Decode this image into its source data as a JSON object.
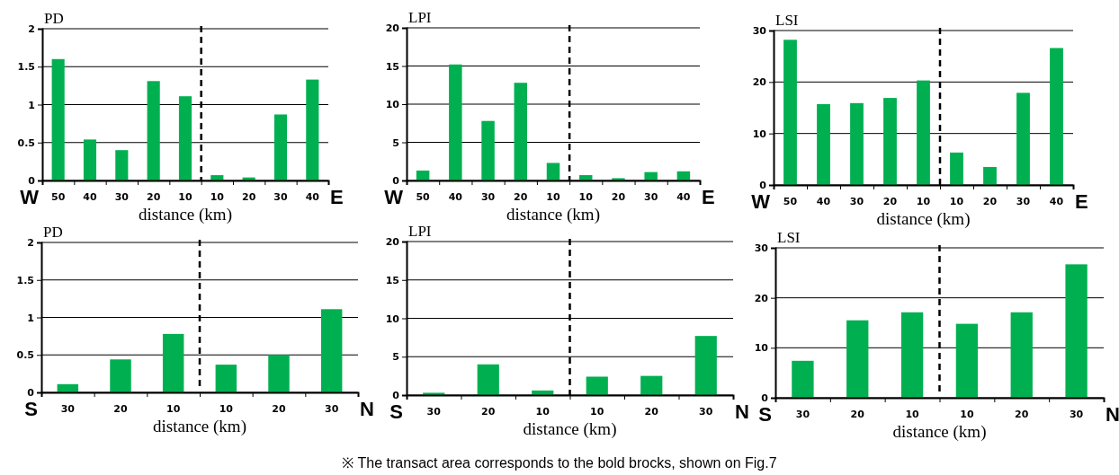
{
  "chart_data": [
    {
      "type": "bar",
      "title": "PD",
      "xlabel": "distance (km)",
      "categories": [
        "50",
        "40",
        "30",
        "20",
        "10",
        "10",
        "20",
        "30",
        "40"
      ],
      "values": [
        1.6,
        0.54,
        0.4,
        1.31,
        1.11,
        0.07,
        0.04,
        0.87,
        1.33
      ],
      "color": "#00b050",
      "ylim": [
        0,
        2
      ],
      "yticks": [
        0,
        0.5,
        1,
        1.5,
        2
      ],
      "grid": "y",
      "annotations": [
        "W",
        "E"
      ]
    },
    {
      "type": "bar",
      "title": "LPI",
      "xlabel": "distance (km)",
      "categories": [
        "50",
        "40",
        "30",
        "20",
        "10",
        "10",
        "20",
        "30",
        "40"
      ],
      "values": [
        1.3,
        15.2,
        7.8,
        12.8,
        2.3,
        0.7,
        0.3,
        1.1,
        1.2
      ],
      "color": "#00b050",
      "ylim": [
        0,
        20
      ],
      "yticks": [
        0,
        5,
        10,
        15,
        20
      ],
      "grid": "y",
      "annotations": [
        "W",
        "E"
      ]
    },
    {
      "type": "bar",
      "title": "LSI",
      "xlabel": "distance (km)",
      "categories": [
        "50",
        "40",
        "30",
        "20",
        "10",
        "10",
        "20",
        "30",
        "40"
      ],
      "values": [
        28.2,
        15.7,
        15.9,
        16.9,
        20.3,
        6.3,
        3.5,
        17.9,
        26.6
      ],
      "color": "#00b050",
      "ylim": [
        0,
        30
      ],
      "yticks": [
        0,
        10,
        20,
        30
      ],
      "grid": "y",
      "annotations": [
        "W",
        "E"
      ]
    },
    {
      "type": "bar",
      "title": "PD",
      "xlabel": "distance (km)",
      "categories": [
        "30",
        "20",
        "10",
        "10",
        "20",
        "30"
      ],
      "values": [
        0.11,
        0.44,
        0.78,
        0.37,
        0.5,
        1.11
      ],
      "color": "#00b050",
      "ylim": [
        0,
        2
      ],
      "yticks": [
        0,
        0.5,
        1,
        1.5,
        2
      ],
      "grid": "y",
      "annotations": [
        "S",
        "N"
      ]
    },
    {
      "type": "bar",
      "title": "LPI",
      "xlabel": "distance (km)",
      "categories": [
        "30",
        "20",
        "10",
        "10",
        "20",
        "30"
      ],
      "values": [
        0.3,
        4.0,
        0.6,
        2.4,
        2.5,
        7.7
      ],
      "color": "#00b050",
      "ylim": [
        0,
        20
      ],
      "yticks": [
        0,
        5,
        10,
        15,
        20
      ],
      "grid": "y",
      "annotations": [
        "S",
        "N",
        "※ The transact area corresponds to the bold brocks, shown on Fig.7"
      ]
    },
    {
      "type": "bar",
      "title": "LSI",
      "xlabel": "distance (km)",
      "categories": [
        "30",
        "20",
        "10",
        "10",
        "20",
        "30"
      ],
      "values": [
        7.4,
        15.5,
        17.1,
        14.8,
        17.1,
        26.7
      ],
      "color": "#00b050",
      "ylim": [
        0,
        30
      ],
      "yticks": [
        0,
        10,
        20,
        30
      ],
      "grid": "y",
      "annotations": [
        "S",
        "N"
      ]
    }
  ]
}
